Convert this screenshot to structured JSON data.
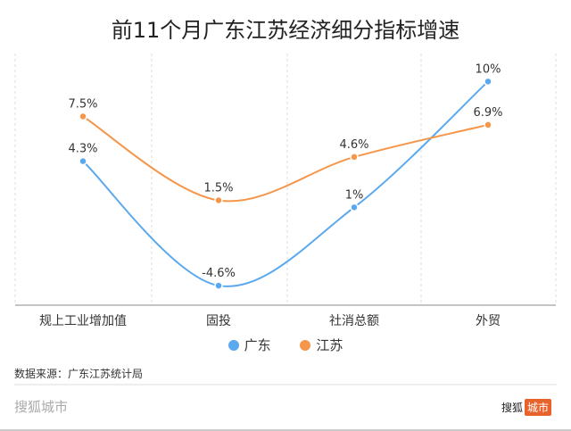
{
  "chart_data": {
    "type": "line",
    "title": "前11个月广东江苏经济细分指标增速",
    "categories": [
      "规上工业增加值",
      "固投",
      "社消总额",
      "外贸"
    ],
    "series": [
      {
        "name": "广东",
        "color": "#5aa9ef",
        "values": [
          4.3,
          -4.6,
          1,
          10
        ],
        "labels": [
          "4.3%",
          "-4.6%",
          "1%",
          "10%"
        ]
      },
      {
        "name": "江苏",
        "color": "#f5964a",
        "values": [
          7.5,
          1.5,
          4.6,
          6.9
        ],
        "labels": [
          "7.5%",
          "1.5%",
          "4.6%",
          "6.9%"
        ]
      }
    ],
    "ylim": [
      -6,
      12
    ],
    "legend": "bottom"
  },
  "source": "数据来源：广东江苏统计局",
  "brand": "搜狐城市",
  "logo": {
    "text": "搜狐",
    "tag": "城市"
  }
}
